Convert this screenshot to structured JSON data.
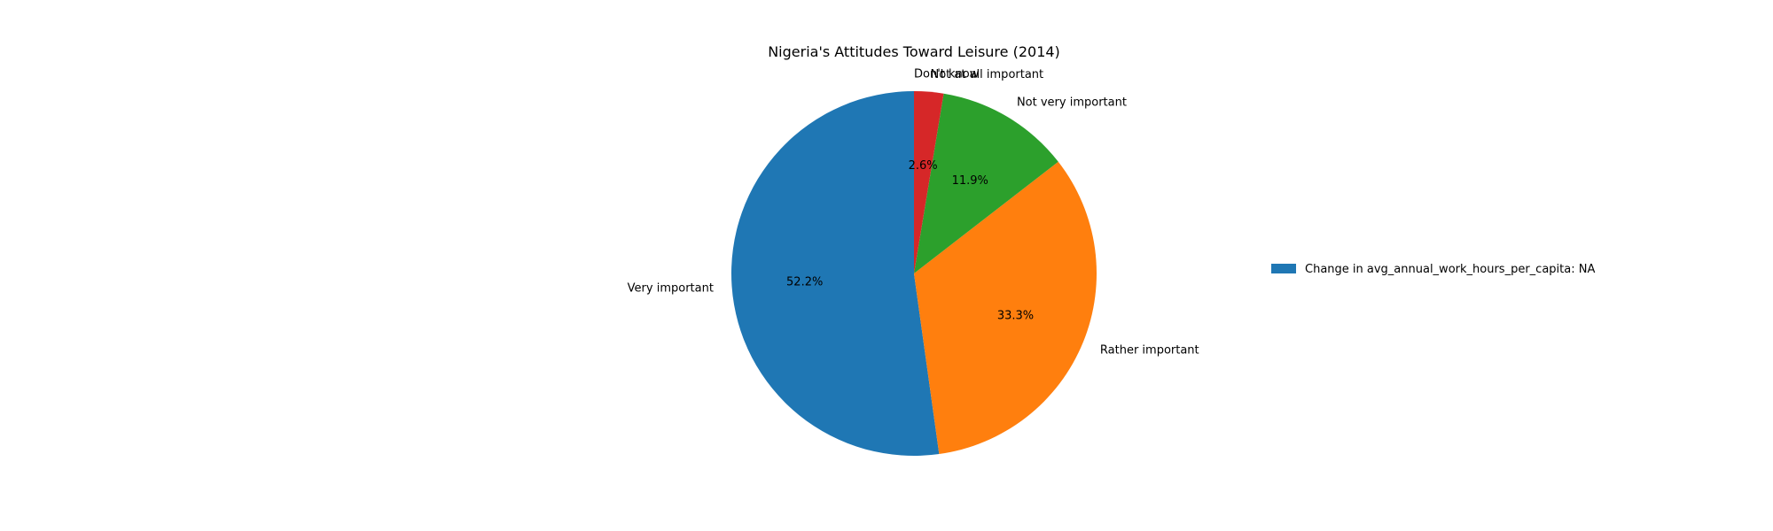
{
  "chart_data": {
    "type": "pie",
    "title": "Nigeria's Attitudes Toward Leisure (2014)",
    "start_angle_deg": 90,
    "direction": "counterclockwise",
    "slices": [
      {
        "label": "Very important",
        "value": 52.2,
        "pct_label": "52.2%",
        "color": "#1f77b4"
      },
      {
        "label": "Rather important",
        "value": 33.3,
        "pct_label": "33.3%",
        "color": "#ff7f0e"
      },
      {
        "label": "Not very important",
        "value": 11.9,
        "pct_label": "11.9%",
        "color": "#2ca02c"
      },
      {
        "label": "Not at all important",
        "value": 2.6,
        "pct_label": "2.6%",
        "color": "#d62728"
      },
      {
        "label": "Don't know",
        "value": 0.0,
        "pct_label": "",
        "color": "#9467bd"
      }
    ],
    "legend": {
      "placement": "right",
      "entries": [
        {
          "label": "Change in avg_annual_work_hours_per_capita: NA",
          "color": "#1f77b4"
        }
      ]
    }
  }
}
